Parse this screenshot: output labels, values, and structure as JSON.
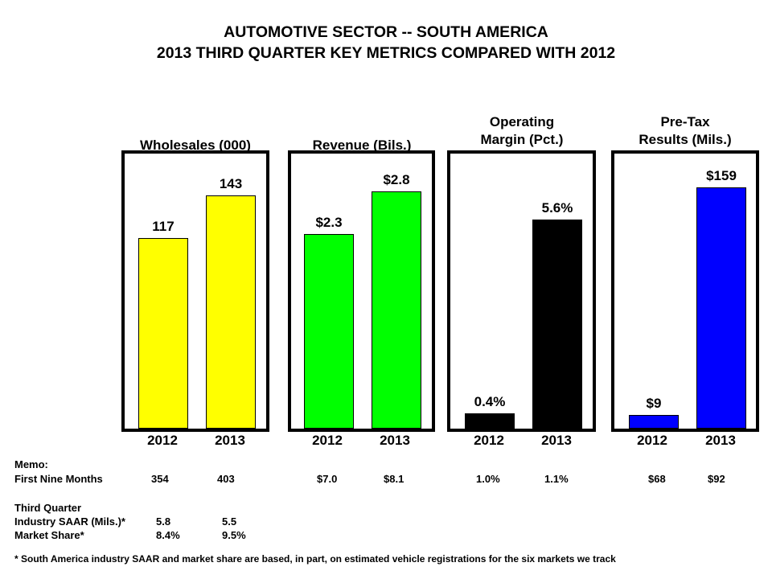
{
  "title_line1": "AUTOMOTIVE SECTOR -- SOUTH AMERICA",
  "title_line2": "2013 THIRD QUARTER KEY METRICS COMPARED WITH 2012",
  "chart_data": [
    {
      "type": "bar",
      "title": "Wholesales (000)",
      "categories": [
        "2012",
        "2013"
      ],
      "values": [
        117,
        143
      ],
      "labels": [
        "117",
        "143"
      ],
      "color": "#FFFF00"
    },
    {
      "type": "bar",
      "title": "Revenue (Bils.)",
      "categories": [
        "2012",
        "2013"
      ],
      "values": [
        2.3,
        2.8
      ],
      "labels": [
        "$2.3",
        "$2.8"
      ],
      "color": "#00FF00"
    },
    {
      "type": "bar",
      "title_line1": "Operating",
      "title_line2": "Margin (Pct.)",
      "categories": [
        "2012",
        "2013"
      ],
      "values": [
        0.4,
        5.6
      ],
      "labels": [
        "0.4%",
        "5.6%"
      ],
      "color": "#000000"
    },
    {
      "type": "bar",
      "title_line1": "Pre-Tax",
      "title_line2": "Results (Mils.)",
      "categories": [
        "2012",
        "2013"
      ],
      "values": [
        9,
        159
      ],
      "labels": [
        "$9",
        "$159"
      ],
      "color": "#0000FF"
    }
  ],
  "memo": {
    "heading": "Memo:",
    "first_nine_months_label": "First Nine Months",
    "first_nine_months": [
      "354",
      "403",
      "$7.0",
      "$8.1",
      "1.0%",
      "1.1%",
      "$68",
      "$92"
    ],
    "third_quarter_heading": "Third Quarter",
    "saar_label": "Industry SAAR (Mils.)*",
    "saar": [
      "5.8",
      "5.5"
    ],
    "share_label": "Market Share*",
    "share": [
      "8.4%",
      "9.5%"
    ]
  },
  "footnote": "*  South America industry  SAAR and market share are based, in part, on estimated vehicle registrations  for the six markets we track"
}
